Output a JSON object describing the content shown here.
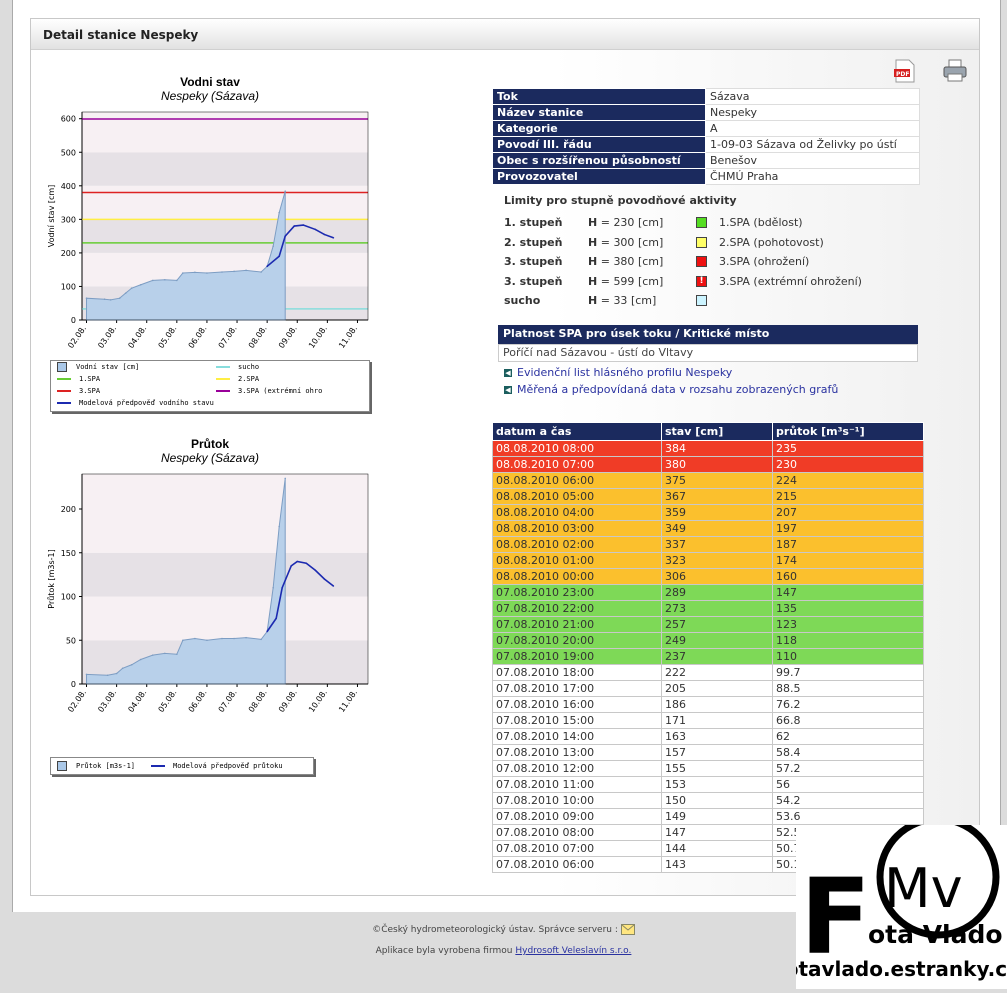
{
  "page": {
    "title": "Detail stanice Nespeky"
  },
  "toolbar": {
    "pdf_icon": "pdf-icon",
    "print_icon": "printer-icon"
  },
  "charts": [
    {
      "title": "Vodni stav",
      "subtitle": "Nespeky (Sázava)",
      "ylabel": "Vodní stav [cm]"
    },
    {
      "title": "Průtok",
      "subtitle": "Nespeky (Sázava)",
      "ylabel": "Průtok [m3s-1]"
    }
  ],
  "legend1": {
    "items": [
      "Vodní stav [cm]",
      "sucho",
      "1.SPA",
      "2.SPA",
      "3.SPA",
      "3.SPA (extrémní ohro",
      "Modelová předpověď vodního stavu"
    ]
  },
  "legend2": {
    "items": [
      "Průtok [m3s-1]",
      "Modelová předpověď průtoku"
    ]
  },
  "chart_data": [
    {
      "type": "area",
      "title": "Vodni stav",
      "subtitle": "Nespeky (Sázava)",
      "ylabel": "Vodní stav [cm]",
      "ylim": [
        0,
        620
      ],
      "yticks": [
        0,
        100,
        200,
        300,
        400,
        500,
        600
      ],
      "xticks": [
        "02.08.",
        "03.08.",
        "04.08.",
        "05.08.",
        "06.08.",
        "07.08.",
        "08.08.",
        "09.08.",
        "10.08.",
        "11.08."
      ],
      "series": [
        {
          "name": "Vodní stav [cm]",
          "x": [
            0,
            0.6,
            0.8,
            1.1,
            1.3,
            1.5,
            1.8,
            2.2,
            2.6,
            3.0,
            3.2,
            3.6,
            4.0,
            4.5,
            4.9,
            5.3,
            5.8,
            6.0,
            6.2,
            6.4,
            6.6
          ],
          "y": [
            65,
            62,
            60,
            65,
            80,
            95,
            105,
            118,
            120,
            118,
            140,
            142,
            140,
            143,
            145,
            148,
            143,
            160,
            220,
            320,
            384
          ]
        },
        {
          "name": "Modelová předpověď vodního stavu",
          "x": [
            6.0,
            6.4,
            6.6,
            6.9,
            7.2,
            7.6,
            7.9,
            8.2
          ],
          "y": [
            160,
            190,
            250,
            280,
            283,
            270,
            255,
            245
          ]
        }
      ],
      "limits": [
        {
          "name": "1.SPA",
          "y": 230,
          "color": "#66cc33"
        },
        {
          "name": "2.SPA",
          "y": 300,
          "color": "#ffee44"
        },
        {
          "name": "3.SPA",
          "y": 380,
          "color": "#dd2222"
        },
        {
          "name": "3.SPA (extrémní ohrožení)",
          "y": 599,
          "color": "#990099"
        },
        {
          "name": "sucho",
          "y": 33,
          "color": "#88dddd"
        }
      ]
    },
    {
      "type": "area",
      "title": "Průtok",
      "subtitle": "Nespeky (Sázava)",
      "ylabel": "Průtok [m3s-1]",
      "ylim": [
        0,
        240
      ],
      "yticks": [
        0,
        50,
        100,
        150,
        200
      ],
      "xticks": [
        "02.08.",
        "03.08.",
        "04.08.",
        "05.08.",
        "06.08.",
        "07.08.",
        "08.08.",
        "09.08.",
        "10.08.",
        "11.08."
      ],
      "series": [
        {
          "name": "Průtok [m3s-1]",
          "x": [
            0,
            0.7,
            1.0,
            1.2,
            1.5,
            1.8,
            2.2,
            2.6,
            3.0,
            3.2,
            3.6,
            4.0,
            4.5,
            4.9,
            5.3,
            5.8,
            6.0,
            6.2,
            6.4,
            6.6
          ],
          "y": [
            11,
            10,
            12,
            18,
            22,
            28,
            33,
            35,
            34,
            50,
            52,
            50,
            52,
            52,
            53,
            51,
            60,
            110,
            180,
            235
          ]
        },
        {
          "name": "Modelová předpověď průtoku",
          "x": [
            6.0,
            6.3,
            6.5,
            6.8,
            7.0,
            7.3,
            7.6,
            7.9,
            8.2
          ],
          "y": [
            60,
            75,
            110,
            135,
            140,
            138,
            130,
            120,
            112
          ]
        }
      ]
    }
  ],
  "info": [
    {
      "k": "Tok",
      "v": "Sázava"
    },
    {
      "k": "Název stanice",
      "v": "Nespeky"
    },
    {
      "k": "Kategorie",
      "v": "A"
    },
    {
      "k": "Povodí III. řádu",
      "v": "1-09-03 Sázava od Želivky po ústí"
    },
    {
      "k": "Obec s rozšířenou působností",
      "v": "Benešov"
    },
    {
      "k": "Provozovatel",
      "v": "ČHMÚ Praha"
    }
  ],
  "limits": {
    "title": "Limity pro stupně povodňové aktivity",
    "rows": [
      {
        "label": "1. stupeň",
        "h": "230",
        "unit": "[cm]",
        "spa": "1.SPA (bdělost)",
        "color": "#55dd22"
      },
      {
        "label": "2. stupeň",
        "h": "300",
        "unit": "[cm]",
        "spa": "2.SPA (pohotovost)",
        "color": "#ffff66"
      },
      {
        "label": "3. stupeň",
        "h": "380",
        "unit": "[cm]",
        "spa": "3.SPA (ohrožení)",
        "color": "#ee1111"
      },
      {
        "label": "3. stupeň",
        "h": "599",
        "unit": "[cm]",
        "spa": "3.SPA (extrémní ohrožení)",
        "color": "#ee1111"
      },
      {
        "label": "sucho",
        "h": "33",
        "unit": "[cm]",
        "spa": "",
        "color": "#ccf4ff"
      }
    ]
  },
  "spa_section": {
    "header": "Platnost SPA pro úsek toku / Kritické místo",
    "body": "Poříčí nad Sázavou - ústí do Vltavy"
  },
  "links": [
    "Evidenční list hlásného profilu Nespeky",
    "Měřená a předpovídaná data v rozsahu zobrazených grafů"
  ],
  "table": {
    "headers": [
      "datum a čas",
      "stav [cm]",
      "průtok [m³s⁻¹]"
    ],
    "rows": [
      {
        "d": "08.08.2010 08:00",
        "s": "384",
        "q": "235",
        "level": "red"
      },
      {
        "d": "08.08.2010 07:00",
        "s": "380",
        "q": "230",
        "level": "red"
      },
      {
        "d": "08.08.2010 06:00",
        "s": "375",
        "q": "224",
        "level": "orange"
      },
      {
        "d": "08.08.2010 05:00",
        "s": "367",
        "q": "215",
        "level": "orange"
      },
      {
        "d": "08.08.2010 04:00",
        "s": "359",
        "q": "207",
        "level": "orange"
      },
      {
        "d": "08.08.2010 03:00",
        "s": "349",
        "q": "197",
        "level": "orange"
      },
      {
        "d": "08.08.2010 02:00",
        "s": "337",
        "q": "187",
        "level": "orange"
      },
      {
        "d": "08.08.2010 01:00",
        "s": "323",
        "q": "174",
        "level": "orange"
      },
      {
        "d": "08.08.2010 00:00",
        "s": "306",
        "q": "160",
        "level": "orange"
      },
      {
        "d": "07.08.2010 23:00",
        "s": "289",
        "q": "147",
        "level": "green"
      },
      {
        "d": "07.08.2010 22:00",
        "s": "273",
        "q": "135",
        "level": "green"
      },
      {
        "d": "07.08.2010 21:00",
        "s": "257",
        "q": "123",
        "level": "green"
      },
      {
        "d": "07.08.2010 20:00",
        "s": "249",
        "q": "118",
        "level": "green"
      },
      {
        "d": "07.08.2010 19:00",
        "s": "237",
        "q": "110",
        "level": "green"
      },
      {
        "d": "07.08.2010 18:00",
        "s": "222",
        "q": "99.7",
        "level": "none"
      },
      {
        "d": "07.08.2010 17:00",
        "s": "205",
        "q": "88.5",
        "level": "none"
      },
      {
        "d": "07.08.2010 16:00",
        "s": "186",
        "q": "76.2",
        "level": "none"
      },
      {
        "d": "07.08.2010 15:00",
        "s": "171",
        "q": "66.8",
        "level": "none"
      },
      {
        "d": "07.08.2010 14:00",
        "s": "163",
        "q": "62",
        "level": "none"
      },
      {
        "d": "07.08.2010 13:00",
        "s": "157",
        "q": "58.4",
        "level": "none"
      },
      {
        "d": "07.08.2010 12:00",
        "s": "155",
        "q": "57.2",
        "level": "none"
      },
      {
        "d": "07.08.2010 11:00",
        "s": "153",
        "q": "56",
        "level": "none"
      },
      {
        "d": "07.08.2010 10:00",
        "s": "150",
        "q": "54.2",
        "level": "none"
      },
      {
        "d": "07.08.2010 09:00",
        "s": "149",
        "q": "53.6",
        "level": "none"
      },
      {
        "d": "07.08.2010 08:00",
        "s": "147",
        "q": "52.5",
        "level": "none"
      },
      {
        "d": "07.08.2010 07:00",
        "s": "144",
        "q": "50.7",
        "level": "none"
      },
      {
        "d": "07.08.2010 06:00",
        "s": "143",
        "q": "50.1",
        "level": "none"
      }
    ]
  },
  "colors": {
    "red": "#f03c26",
    "orange": "#fbc02d",
    "green": "#7ed957",
    "none": "#ffffff",
    "navy": "#1b2a5e"
  },
  "footer": {
    "copyright": "©Český hydrometeorologický ústav. Správce serveru :",
    "app_prefix": "Aplikace byla vyrobena firmou",
    "app_link": "Hydrosoft Veleslavín s.r.o."
  },
  "watermark": {
    "big": "F",
    "mv": "Mv",
    "name": "ota Vlado",
    "url": "fotavlado.estranky.cz"
  }
}
